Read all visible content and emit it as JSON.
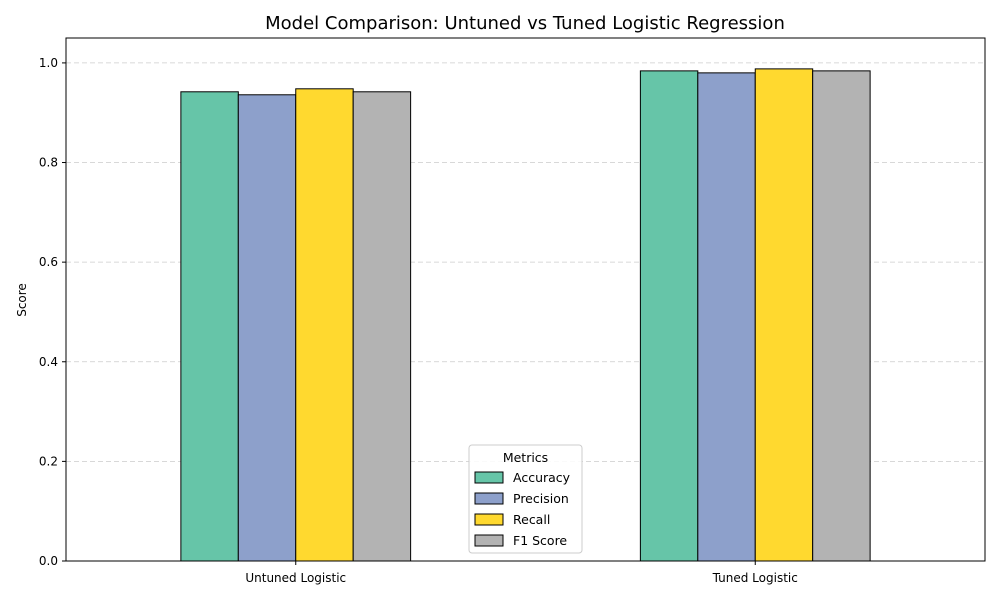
{
  "chart_data": {
    "type": "bar",
    "title": "Model Comparison: Untuned vs Tuned Logistic Regression",
    "xlabel": "",
    "ylabel": "Score",
    "categories": [
      "Untuned Logistic",
      "Tuned Logistic"
    ],
    "series": [
      {
        "name": "Accuracy",
        "values": [
          0.942,
          0.984
        ],
        "color": "#66c5a8"
      },
      {
        "name": "Precision",
        "values": [
          0.936,
          0.98
        ],
        "color": "#8da0cb"
      },
      {
        "name": "Recall",
        "values": [
          0.948,
          0.988
        ],
        "color": "#ffd92f"
      },
      {
        "name": "F1 Score",
        "values": [
          0.942,
          0.984
        ],
        "color": "#b3b3b3"
      }
    ],
    "ylim": [
      0,
      1.05
    ],
    "yticks": [
      "0.0",
      "0.2",
      "0.4",
      "0.6",
      "0.8",
      "1.0"
    ],
    "grid": "horizontal dashed",
    "legend": {
      "title": "Metrics",
      "placement": "lower center"
    }
  }
}
